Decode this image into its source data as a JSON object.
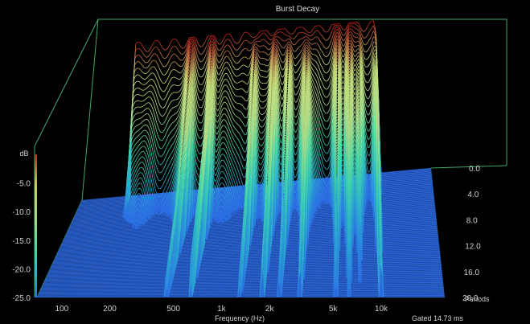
{
  "chart_data": {
    "type": "waterfall",
    "title": "Burst Decay",
    "xlabel": "Frequency (Hz)",
    "ylabel": "dB",
    "zlabel": "Periods",
    "gated_label": "Gated 14.73 ms",
    "x_scale": "log",
    "xlim": [
      70,
      25000
    ],
    "ylim": [
      -25,
      0
    ],
    "zlim": [
      0,
      20
    ],
    "x_ticks": [
      "100",
      "200",
      "500",
      "1k",
      "2k",
      "5k",
      "10k"
    ],
    "x_tick_values": [
      100,
      200,
      500,
      1000,
      2000,
      5000,
      10000
    ],
    "y_ticks": [
      "-5.0",
      "-10.0",
      "-15.0",
      "-20.0",
      "-25.0"
    ],
    "y_tick_values": [
      -5,
      -10,
      -15,
      -20,
      -25
    ],
    "z_ticks": [
      "0.0",
      "4.0",
      "8.0",
      "12.0",
      "16.0",
      "20.0"
    ],
    "z_tick_values": [
      0,
      4,
      8,
      12,
      16,
      20
    ],
    "colormap": {
      "stops": [
        {
          "db": 0,
          "color": "#c2221e"
        },
        {
          "db": -5,
          "color": "#c8e07c"
        },
        {
          "db": -10,
          "color": "#b0dc88"
        },
        {
          "db": -15,
          "color": "#44d6a8"
        },
        {
          "db": -20,
          "color": "#2cb0cc"
        },
        {
          "db": -25,
          "color": "#2a6ce8"
        }
      ]
    },
    "floor_color": "#2c6ae0",
    "background": "#000000",
    "num_slices": 100,
    "bands": [
      {
        "lo": 160,
        "hi": 1300,
        "level": -0.8
      },
      {
        "lo": 1300,
        "hi": 2200,
        "level": -0.3
      },
      {
        "lo": 2200,
        "hi": 4000,
        "level": -0.6
      },
      {
        "lo": 4000,
        "hi": 7500,
        "level": -0.3
      },
      {
        "lo": 7500,
        "hi": 9500,
        "level": -1.2
      },
      {
        "lo": 9500,
        "hi": 10500,
        "level": -6.5
      }
    ],
    "resonances": [
      {
        "freq": 450,
        "level": -15
      },
      {
        "freq": 640,
        "level": -12
      },
      {
        "freq": 1300,
        "level": -14
      },
      {
        "freq": 1800,
        "level": -12
      },
      {
        "freq": 2300,
        "level": -14
      },
      {
        "freq": 3100,
        "level": -13
      },
      {
        "freq": 5200,
        "level": -15
      },
      {
        "freq": 6300,
        "level": -16
      },
      {
        "freq": 7400,
        "level": -20
      },
      {
        "freq": 10000,
        "level": -10
      }
    ]
  }
}
